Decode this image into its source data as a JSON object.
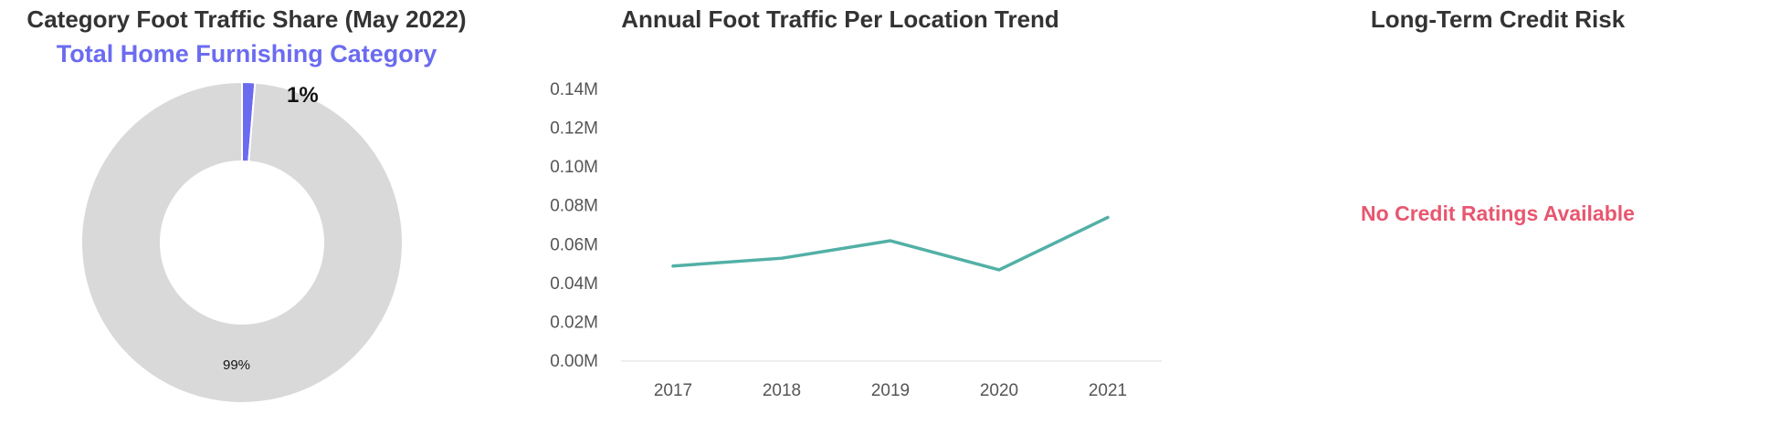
{
  "donut": {
    "title": "Category Foot Traffic Share (May 2022)",
    "subtitle": "Total Home Furnishing Category"
  },
  "line": {
    "title": "Annual Foot Traffic Per Location Trend"
  },
  "credit": {
    "title": "Long-Term Credit Risk",
    "message": "No Credit Ratings Available"
  },
  "colors": {
    "share": "#6b6bf0",
    "rest": "#d9d9d9",
    "line": "#52b0a6",
    "alert": "#e8566f"
  },
  "chart_data": [
    {
      "type": "pie",
      "title": "Category Foot Traffic Share (May 2022)",
      "subtitle": "Total Home Furnishing Category",
      "slices": [
        {
          "label": "1%",
          "value": 1.3,
          "color": "#6b6bf0"
        },
        {
          "label": "99%",
          "value": 98.7,
          "color": "#d9d9d9"
        }
      ]
    },
    {
      "type": "line",
      "title": "Annual Foot Traffic Per Location Trend",
      "x": [
        "2017",
        "2018",
        "2019",
        "2020",
        "2021"
      ],
      "y": [
        49000,
        53000,
        62000,
        47000,
        74000
      ],
      "ylim": [
        0,
        140000
      ],
      "yticks": [
        0,
        20000,
        40000,
        60000,
        80000,
        100000,
        120000,
        140000
      ],
      "ytick_labels": [
        "0.00M",
        "0.02M",
        "0.04M",
        "0.06M",
        "0.08M",
        "0.10M",
        "0.12M",
        "0.14M"
      ],
      "grid": false
    }
  ]
}
